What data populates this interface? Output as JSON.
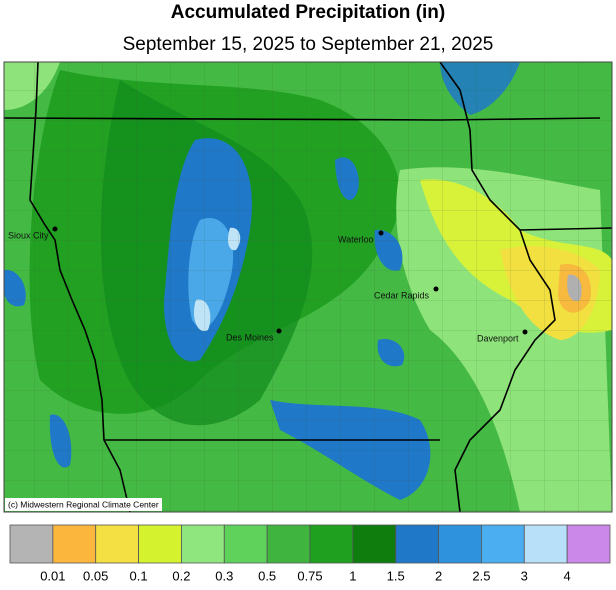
{
  "title": "Accumulated Precipitation (in)",
  "subtitle": "September 15, 2025 to September 21, 2025",
  "credit": "(c) Midwestern Regional Climate Center",
  "cities": [
    {
      "name": "Sioux City"
    },
    {
      "name": "Waterloo"
    },
    {
      "name": "Cedar Rapids"
    },
    {
      "name": "Des Moines"
    },
    {
      "name": "Davenport"
    }
  ],
  "legend": {
    "colors": [
      "#b4b4b4",
      "#fbb63e",
      "#f4e043",
      "#d4f22e",
      "#8fe67e",
      "#5ed25a",
      "#3fb43f",
      "#1fa01f",
      "#0e7d0e",
      "#1f78c8",
      "#2f92dc",
      "#4aaef0",
      "#b8e0f8",
      "#cc88e8"
    ],
    "labels": [
      0.01,
      0.05,
      0.1,
      0.2,
      0.3,
      0.5,
      0.75,
      1,
      1.5,
      2,
      2.5,
      3,
      4
    ]
  }
}
